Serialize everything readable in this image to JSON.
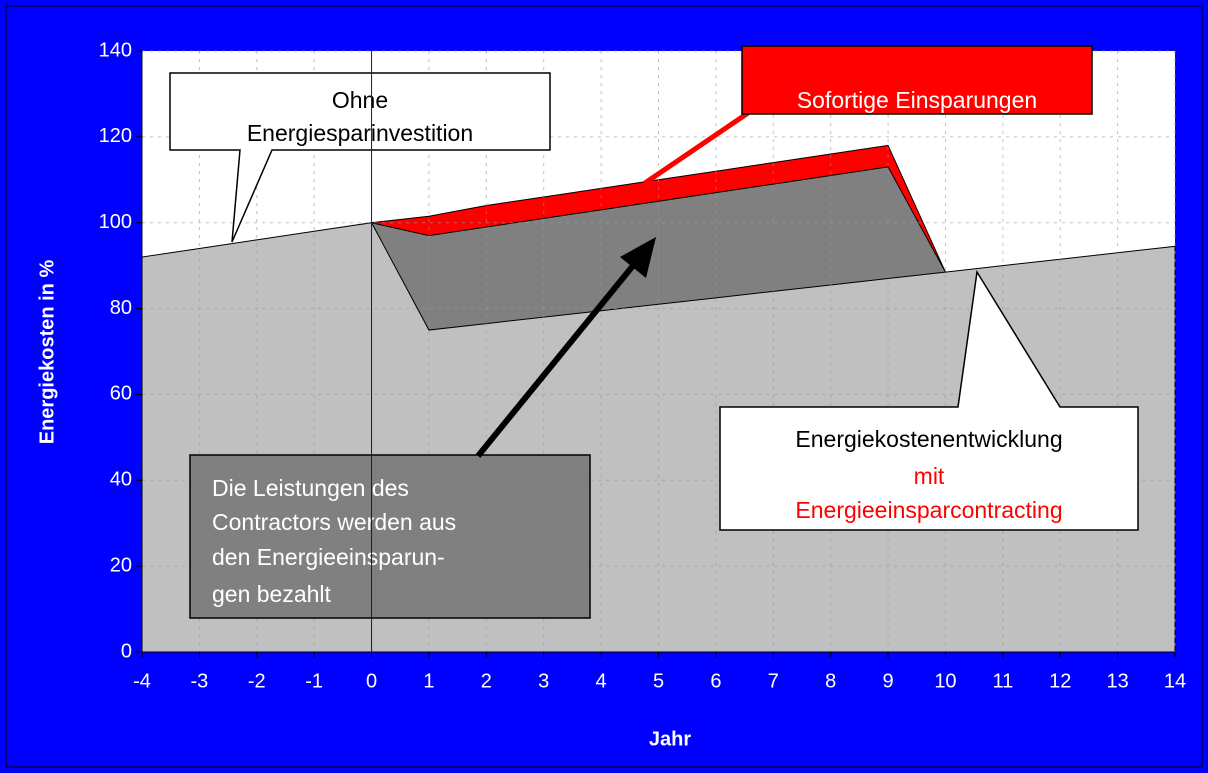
{
  "chart_data": {
    "type": "area",
    "xlabel": "Jahr",
    "ylabel": "Energiekosten in %",
    "x": [
      -4,
      -3,
      -2,
      -1,
      0,
      1,
      2,
      3,
      4,
      5,
      6,
      7,
      8,
      9,
      10,
      11,
      12,
      13,
      14
    ],
    "series": [
      {
        "color": "#ff0000",
        "values": [
          null,
          null,
          null,
          null,
          100,
          101.5,
          104,
          106,
          108,
          110,
          112,
          114,
          116,
          118,
          88.5,
          null,
          null,
          null,
          null
        ]
      },
      {
        "color": "#808080",
        "values": [
          null,
          null,
          null,
          null,
          100,
          97,
          99,
          101,
          103,
          105,
          107,
          109,
          111,
          113,
          88.5,
          null,
          null,
          null,
          null
        ]
      },
      {
        "color": "#c0c0c0",
        "values": [
          92,
          94,
          96,
          98,
          100,
          75,
          76.5,
          78,
          79.5,
          81,
          82.5,
          84,
          85.5,
          87,
          88.5,
          90,
          91.5,
          93,
          94.5
        ]
      }
    ],
    "xlim": [
      -4,
      14
    ],
    "xticks": [
      -4,
      -3,
      -2,
      -1,
      0,
      1,
      2,
      3,
      4,
      5,
      6,
      7,
      8,
      9,
      10,
      11,
      12,
      13,
      14
    ],
    "ylim": [
      0,
      140
    ],
    "yticks": [
      0,
      20,
      40,
      60,
      80,
      100,
      120,
      140
    ],
    "grid": true,
    "annotations": {
      "ohne": [
        "Ohne",
        "Energiesparinvestition"
      ],
      "sofortig": "Sofortige Einsparungen",
      "contractor": [
        "Die Leistungen des",
        "Contractors werden aus",
        "den Energieeinsparun-",
        "gen bezahlt"
      ],
      "entwicklung": [
        "Energiekostenentwicklung",
        "mit",
        "Energieeinsparcontracting"
      ]
    }
  }
}
